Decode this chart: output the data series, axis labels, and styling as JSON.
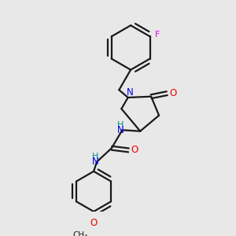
{
  "bg_color": "#e8e8e8",
  "bond_color": "#1a1a1a",
  "N_color": "#0000ee",
  "O_color": "#ee0000",
  "F_color": "#ee00ee",
  "lw": 1.6,
  "figsize": [
    3.0,
    3.0
  ],
  "dpi": 100,
  "xlim": [
    0,
    10
  ],
  "ylim": [
    0,
    10
  ]
}
